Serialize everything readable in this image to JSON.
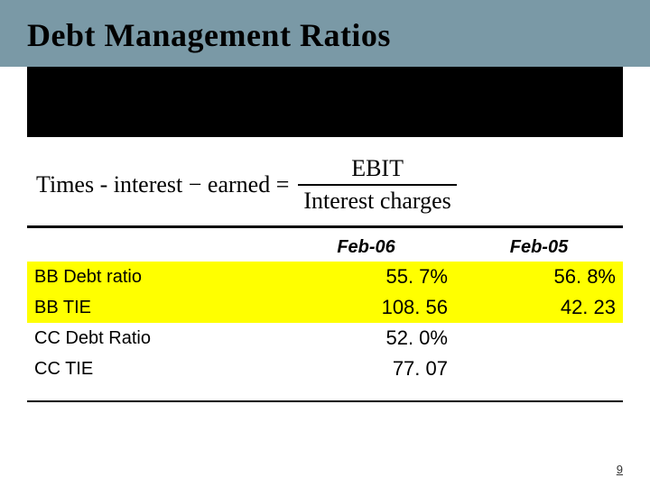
{
  "colors": {
    "header_band_bg": "#7a99a6",
    "black_block_bg": "#000000",
    "highlight_bg": "#ffff00",
    "page_bg": "#ffffff",
    "text": "#000000"
  },
  "title": "Debt Management Ratios",
  "formula": {
    "lhs": "Times - interest − earned =",
    "numerator": "EBIT",
    "denominator": "Interest charges"
  },
  "table": {
    "columns": [
      "",
      "Feb-06",
      "Feb-05"
    ],
    "rows": [
      {
        "label": "BB Debt ratio",
        "feb06": "55. 7%",
        "feb05": "56. 8%",
        "highlight": true
      },
      {
        "label": "BB TIE",
        "feb06": "108. 56",
        "feb05": "42. 23",
        "highlight": true
      },
      {
        "label": "CC Debt Ratio",
        "feb06": "52. 0%",
        "feb05": "",
        "highlight": false
      },
      {
        "label": "CC TIE",
        "feb06": "77. 07",
        "feb05": "",
        "highlight": false
      }
    ]
  },
  "page_number": "9"
}
